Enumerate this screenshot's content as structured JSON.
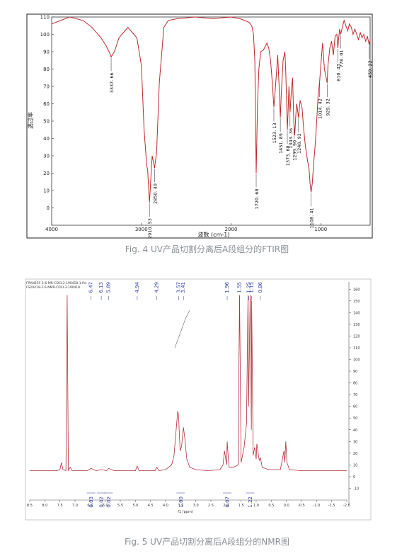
{
  "chart_data": [
    {
      "type": "line",
      "ylabel": "透过率",
      "xlabel": "波数 (cm-1)",
      "xlim": [
        4000,
        450
      ],
      "ylim": [
        -10,
        110
      ],
      "x_ticks": [
        "4000",
        "3000",
        "2000",
        "1000"
      ],
      "y_ticks": [
        "0",
        "10",
        "20",
        "30",
        "40",
        "50",
        "60",
        "70",
        "80",
        "90",
        "100",
        "110"
      ],
      "grid": false,
      "series": [
        {
          "x": [
            4000,
            3900,
            3800,
            3650,
            3550,
            3450,
            3400,
            3360,
            3337,
            3300,
            3250,
            3150,
            3050,
            3000,
            2970,
            2940,
            2930,
            2910,
            2880,
            2853,
            2830,
            2800,
            2750,
            2700,
            2600,
            2400,
            2200,
            2000,
            1900,
            1850,
            1800,
            1770,
            1750,
            1735,
            1720,
            1705,
            1690,
            1670,
            1640,
            1600,
            1580,
            1560,
            1540,
            1523,
            1505,
            1480,
            1460,
            1451,
            1440,
            1420,
            1400,
            1390,
            1380,
            1373,
            1365,
            1355,
            1343,
            1330,
            1315,
            1300,
            1290,
            1280,
            1270,
            1260,
            1248,
            1230,
            1210,
            1190,
            1170,
            1150,
            1130,
            1120,
            1108,
            1095,
            1080,
            1060,
            1040,
            1030,
            1014,
            1000,
            980,
            960,
            940,
            929,
            920,
            900,
            880,
            860,
            840,
            820,
            810,
            800,
            790,
            778,
            760,
            740,
            720,
            700,
            680,
            660,
            640,
            620,
            600,
            580,
            560,
            540,
            520,
            500,
            480,
            470,
            459,
            450
          ],
          "y": [
            106,
            108,
            110,
            108,
            104,
            98,
            94,
            90,
            87,
            90,
            98,
            104,
            98,
            82,
            45,
            24,
            22,
            3,
            30,
            23,
            32,
            72,
            104,
            108,
            109,
            110,
            109,
            110,
            109,
            108,
            107,
            105,
            100,
            85,
            20,
            60,
            80,
            90,
            91,
            95,
            92,
            85,
            72,
            58,
            70,
            88,
            65,
            52,
            66,
            85,
            90,
            78,
            60,
            45,
            55,
            70,
            55,
            66,
            75,
            48,
            42,
            52,
            60,
            57,
            52,
            62,
            58,
            45,
            35,
            28,
            22,
            14,
            9,
            14,
            25,
            38,
            55,
            65,
            72,
            82,
            95,
            80,
            75,
            72,
            82,
            92,
            96,
            88,
            99,
            100,
            92,
            98,
            103,
            100,
            104,
            108,
            105,
            102,
            106,
            104,
            100,
            103,
            100,
            97,
            101,
            98,
            100,
            96,
            99,
            96,
            94,
            97
          ]
        }
      ],
      "annotations": [
        {
          "label": "3337. 66",
          "x": 3337,
          "y": 87
        },
        {
          "label": "2910. 53",
          "x": 2910,
          "y": 3
        },
        {
          "label": "2850. 40",
          "x": 2853,
          "y": 23
        },
        {
          "label": "1720. 68",
          "x": 1720,
          "y": 20
        },
        {
          "label": "1523. 13",
          "x": 1523,
          "y": 58
        },
        {
          "label": "1451. 89",
          "x": 1451,
          "y": 52
        },
        {
          "label": "1373. 68",
          "x": 1373,
          "y": 45
        },
        {
          "label": "1343. 36",
          "x": 1343,
          "y": 55
        },
        {
          "label": "1299. 90",
          "x": 1299,
          "y": 48
        },
        {
          "label": "1248. 92",
          "x": 1248,
          "y": 52
        },
        {
          "label": "1108. 41",
          "x": 1108,
          "y": 9
        },
        {
          "label": "1014. 42",
          "x": 1014,
          "y": 72
        },
        {
          "label": "929. 32",
          "x": 929,
          "y": 72
        },
        {
          "label": "810. 43",
          "x": 810,
          "y": 92
        },
        {
          "label": "778. 01",
          "x": 778,
          "y": 100
        },
        {
          "label": "459. 22",
          "x": 459,
          "y": 94
        }
      ]
    },
    {
      "type": "line",
      "xlabel": "f1 (ppm)",
      "xlim": [
        8.5,
        -2.0
      ],
      "ylim": [
        -20,
        165
      ],
      "x_ticks": [
        "8.5",
        "8.0",
        "7.5",
        "7.0",
        "6.5",
        "6.0",
        "5.5",
        "5.0",
        "4.5",
        "4.0",
        "3.5",
        "3.0",
        "2.5",
        "2.0",
        "1.5",
        "1.0",
        "0.5",
        "0.0",
        "-0.5",
        "-1.0",
        "-1.5",
        "-2.0"
      ],
      "y_ticks": [
        "-10",
        "0",
        "10",
        "20",
        "30",
        "40",
        "50",
        "60",
        "70",
        "80",
        "90",
        "100",
        "110",
        "120",
        "130",
        "140",
        "150",
        "160"
      ],
      "header_lines": [
        "FRAN15F-2-6-MR-CDCL3-190418.1.fid",
        "FS20419-2-6-NMR-CDCL3-190418"
      ],
      "series": [
        {
          "x": [
            8.5,
            8.0,
            7.6,
            7.5,
            7.45,
            7.4,
            7.3,
            7.26,
            7.22,
            7.16,
            7.1,
            7.0,
            6.6,
            6.47,
            6.3,
            6.13,
            5.95,
            5.89,
            5.7,
            5.3,
            5.0,
            4.94,
            4.88,
            4.5,
            4.35,
            4.29,
            4.22,
            4.0,
            3.8,
            3.72,
            3.65,
            3.6,
            3.57,
            3.52,
            3.47,
            3.41,
            3.36,
            3.3,
            3.2,
            3.0,
            2.6,
            2.2,
            2.1,
            2.05,
            1.98,
            1.96,
            1.9,
            1.75,
            1.6,
            1.55,
            1.5,
            1.4,
            1.32,
            1.27,
            1.25,
            1.2,
            1.16,
            1.15,
            1.1,
            1.05,
            1.0,
            0.98,
            0.9,
            0.86,
            0.8,
            0.6,
            0.2,
            0.08,
            0.05,
            0.02,
            -0.02,
            -0.1,
            -0.5,
            -1.0,
            -1.5,
            -2.0
          ],
          "y": [
            5,
            5,
            5,
            6,
            12,
            6,
            5,
            155,
            5,
            8,
            5,
            5,
            5,
            7,
            5,
            6,
            5,
            7,
            5,
            5,
            5,
            9,
            5,
            5,
            5,
            8,
            5,
            6,
            10,
            18,
            40,
            56,
            52,
            22,
            26,
            42,
            32,
            15,
            8,
            6,
            5,
            6,
            10,
            22,
            10,
            30,
            8,
            8,
            10,
            155,
            12,
            25,
            45,
            155,
            60,
            155,
            40,
            150,
            18,
            25,
            15,
            28,
            14,
            16,
            8,
            6,
            6,
            22,
            12,
            30,
            12,
            6,
            5,
            5,
            5,
            5
          ]
        }
      ],
      "peak_labels": [
        "6.47",
        "6.13",
        "5.89",
        "4.94",
        "4.29",
        "3.57",
        "3.41",
        "1.96",
        "1.55",
        "1.25",
        "1.15",
        "0.86"
      ],
      "peak_positions": [
        6.47,
        6.13,
        5.89,
        4.94,
        4.29,
        3.57,
        3.41,
        1.96,
        1.55,
        1.25,
        1.15,
        0.86
      ],
      "integrals": [
        {
          "label": "0.03",
          "x": 6.47
        },
        {
          "label": "0.02",
          "x": 6.13
        },
        {
          "label": "0.02",
          "x": 5.89
        },
        {
          "label": "1.00",
          "x": 3.5
        },
        {
          "label": "0.07",
          "x": 1.96
        },
        {
          "label": "1.22",
          "x": 1.2
        }
      ]
    }
  ],
  "captions": {
    "fig4": "Fig. 4 UV产品切割分离后A段组分的FTIR图",
    "fig5": "Fig. 5 UV产品切割分离后A段组分的NMR图"
  }
}
